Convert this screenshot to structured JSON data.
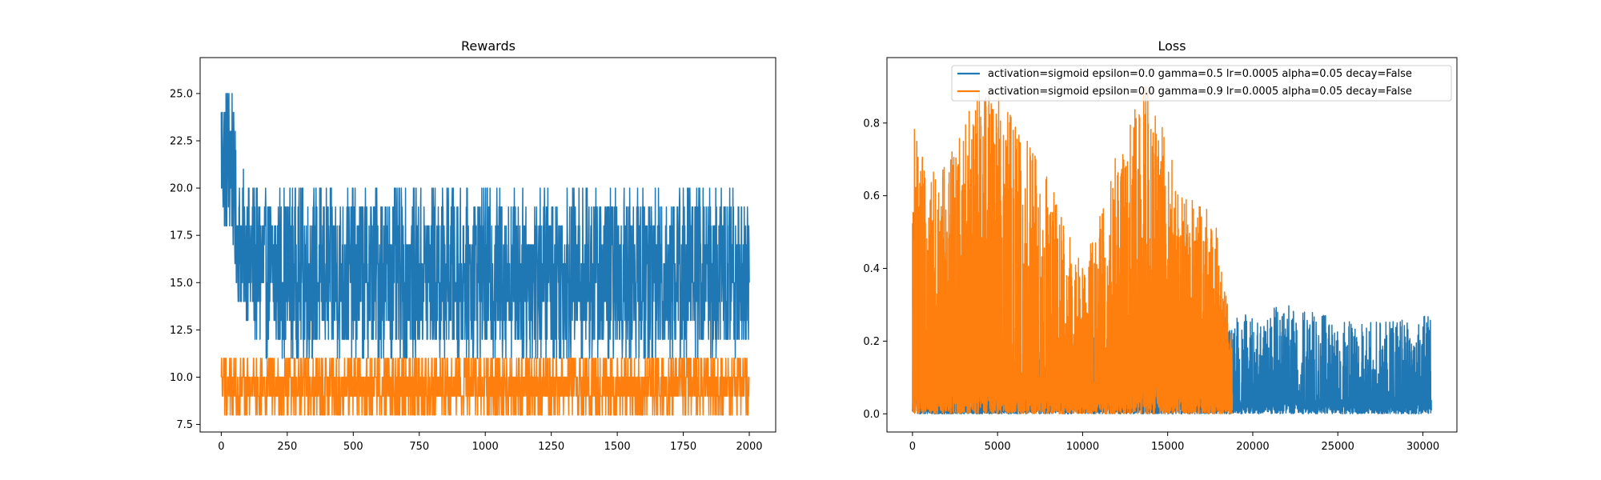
{
  "colors": {
    "series1": "#1f77b4",
    "series2": "#ff7f0e",
    "background": "#ffffff"
  },
  "chart_data": [
    {
      "type": "line",
      "title": "Rewards",
      "xlabel": "",
      "ylabel": "",
      "xlim": [
        -80,
        2100
      ],
      "ylim": [
        7.1,
        26.9
      ],
      "xticks": [
        0,
        250,
        500,
        750,
        1000,
        1250,
        1500,
        1750,
        2000
      ],
      "xtick_labels": [
        "0",
        "250",
        "500",
        "750",
        "1000",
        "1250",
        "1500",
        "1750",
        "2000"
      ],
      "yticks": [
        7.5,
        10.0,
        12.5,
        15.0,
        17.5,
        20.0,
        22.5,
        25.0
      ],
      "ytick_labels": [
        "7.5",
        "10.0",
        "12.5",
        "15.0",
        "17.5",
        "20.0",
        "22.5",
        "25.0"
      ],
      "grid": false,
      "series": [
        {
          "color": "series1",
          "x_max": 2000,
          "profile": [
            [
              0,
              18,
              26
            ],
            [
              40,
              17,
              26
            ],
            [
              60,
              14,
              21
            ],
            [
              120,
              12,
              20
            ],
            [
              160,
              11,
              20
            ],
            [
              300,
              11,
              20
            ],
            [
              1000,
              11,
              20
            ],
            [
              2000,
              11,
              20
            ]
          ]
        },
        {
          "color": "series2",
          "x_max": 2000,
          "profile": [
            [
              0,
              8,
              11
            ],
            [
              500,
              8,
              11
            ],
            [
              1000,
              8,
              11
            ],
            [
              1500,
              8,
              11
            ],
            [
              2000,
              8,
              11
            ]
          ]
        }
      ]
    },
    {
      "type": "line",
      "title": "Loss",
      "xlabel": "",
      "ylabel": "",
      "xlim": [
        -1500,
        32000
      ],
      "ylim": [
        -0.05,
        0.98
      ],
      "xticks": [
        0,
        5000,
        10000,
        15000,
        20000,
        25000,
        30000
      ],
      "xtick_labels": [
        "0",
        "5000",
        "10000",
        "15000",
        "20000",
        "25000",
        "30000"
      ],
      "yticks": [
        0.0,
        0.2,
        0.4,
        0.6,
        0.8
      ],
      "ytick_labels": [
        "0.0",
        "0.2",
        "0.4",
        "0.6",
        "0.8"
      ],
      "grid": false,
      "legend_position": "upper right",
      "series": [
        {
          "name": "activation=sigmoid epsilon=0.0 gamma=0.5 lr=0.0005 alpha=0.05 decay=False",
          "color": "series1",
          "x_max": 30500,
          "profile": [
            [
              0,
              0.0,
              0.74
            ],
            [
              300,
              0.0,
              0.3
            ],
            [
              1500,
              0.0,
              0.05
            ],
            [
              10000,
              0.0,
              0.25
            ],
            [
              15000,
              0.0,
              0.2
            ],
            [
              18800,
              0.0,
              0.28
            ],
            [
              22000,
              0.0,
              0.3
            ],
            [
              26000,
              0.0,
              0.25
            ],
            [
              30500,
              0.0,
              0.27
            ]
          ]
        },
        {
          "name": "activation=sigmoid epsilon=0.0 gamma=0.9 lr=0.0005 alpha=0.05 decay=False",
          "color": "series2",
          "x_max": 18800,
          "profile": [
            [
              0,
              0.0,
              0.82
            ],
            [
              1000,
              0.0,
              0.65
            ],
            [
              4500,
              0.0,
              0.93
            ],
            [
              8000,
              0.0,
              0.65
            ],
            [
              10000,
              0.0,
              0.4
            ],
            [
              12000,
              0.0,
              0.72
            ],
            [
              13800,
              0.0,
              0.93
            ],
            [
              16000,
              0.0,
              0.6
            ],
            [
              18000,
              0.0,
              0.55
            ],
            [
              18800,
              0.0,
              0.2
            ]
          ]
        }
      ]
    }
  ]
}
